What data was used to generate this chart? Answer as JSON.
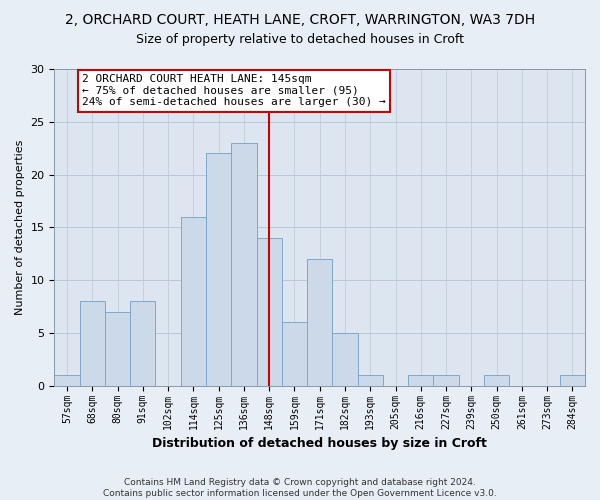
{
  "title": "2, ORCHARD COURT, HEATH LANE, CROFT, WARRINGTON, WA3 7DH",
  "subtitle": "Size of property relative to detached houses in Croft",
  "xlabel": "Distribution of detached houses by size in Croft",
  "ylabel": "Number of detached properties",
  "bar_labels": [
    "57sqm",
    "68sqm",
    "80sqm",
    "91sqm",
    "102sqm",
    "114sqm",
    "125sqm",
    "136sqm",
    "148sqm",
    "159sqm",
    "171sqm",
    "182sqm",
    "193sqm",
    "205sqm",
    "216sqm",
    "227sqm",
    "239sqm",
    "250sqm",
    "261sqm",
    "273sqm",
    "284sqm"
  ],
  "bar_values": [
    1,
    8,
    7,
    8,
    0,
    16,
    22,
    23,
    14,
    6,
    12,
    5,
    1,
    0,
    1,
    1,
    0,
    1,
    0,
    0,
    1
  ],
  "bar_color": "#ccd9e8",
  "bar_edge_color": "#7fa8cc",
  "vline_color": "#cc0000",
  "annotation_box_text": "2 ORCHARD COURT HEATH LANE: 145sqm\n← 75% of detached houses are smaller (95)\n24% of semi-detached houses are larger (30) →",
  "annotation_box_facecolor": "#ffffff",
  "annotation_box_edgecolor": "#cc0000",
  "ylim": [
    0,
    30
  ],
  "yticks": [
    0,
    5,
    10,
    15,
    20,
    25,
    30
  ],
  "footer_text": "Contains HM Land Registry data © Crown copyright and database right 2024.\nContains public sector information licensed under the Open Government Licence v3.0.",
  "bg_color": "#e8eef5",
  "plot_bg_color": "#dde6f0",
  "grid_color": "#b8c8d8"
}
